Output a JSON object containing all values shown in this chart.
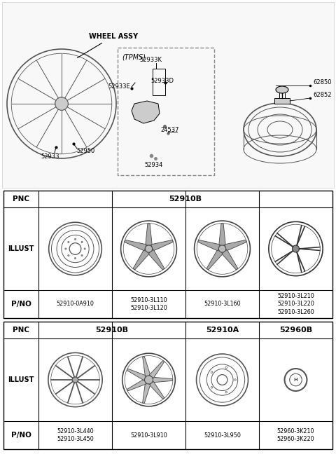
{
  "bg_color": "#ffffff",
  "border_color": "#000000",
  "text_color": "#000000",
  "top_section": {
    "wheel_label": "WHEEL ASSY",
    "wheel_parts": [
      "52933",
      "52950"
    ],
    "tpms_label": "(TPMS)",
    "tpms_parts": [
      "52933K",
      "52933E",
      "52933D",
      "24537",
      "52934"
    ],
    "spare_parts": [
      "62850",
      "62852"
    ]
  },
  "table1": {
    "pnc_value": "52910B",
    "columns": [
      {
        "pno": "52910-0A910"
      },
      {
        "pno": "52910-3L110\n52910-3L120"
      },
      {
        "pno": "52910-3L160"
      },
      {
        "pno": "52910-3L210\n52910-3L220\n52910-3L260"
      }
    ]
  },
  "table2": {
    "pnc_spans": [
      {
        "text": "52910B",
        "cols": [
          0,
          1
        ]
      },
      {
        "text": "52910A",
        "cols": [
          2
        ]
      },
      {
        "text": "52960B",
        "cols": [
          3
        ]
      }
    ],
    "columns": [
      {
        "pno": "52910-3L440\n52910-3L450"
      },
      {
        "pno": "52910-3L910"
      },
      {
        "pno": "52910-3L950"
      },
      {
        "pno": "52960-3K210\n52960-3K220"
      }
    ]
  }
}
